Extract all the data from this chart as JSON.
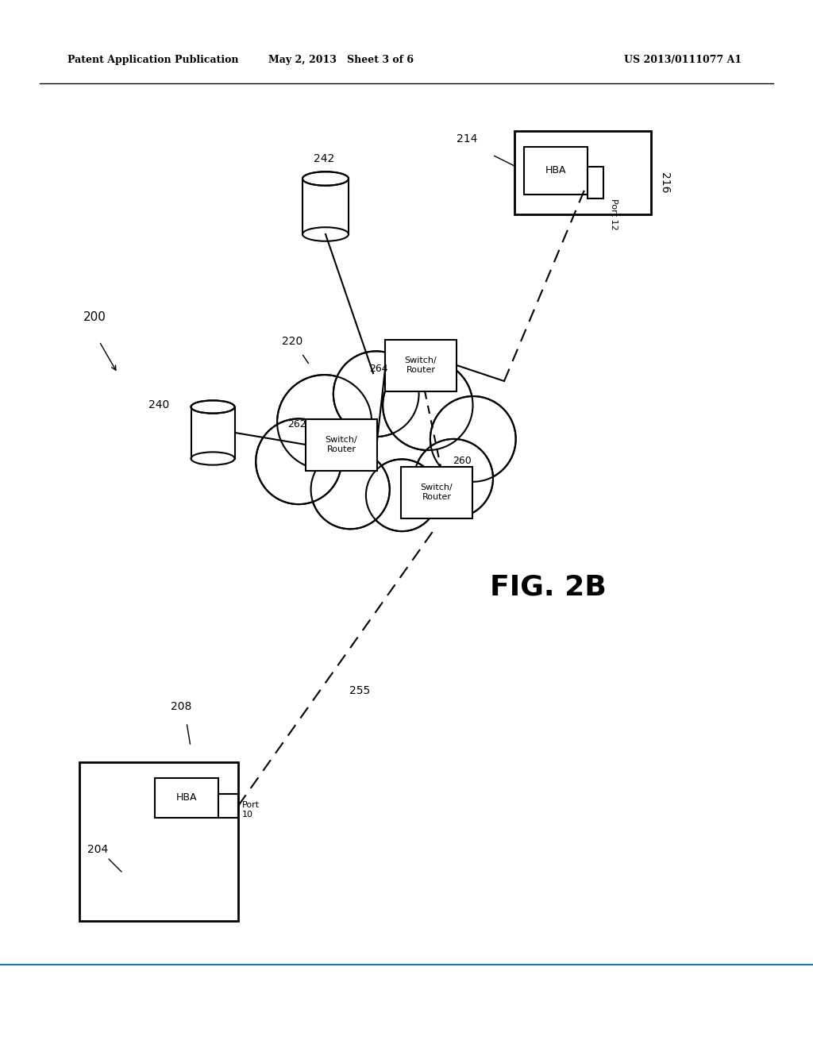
{
  "bg_color": "#ffffff",
  "line_color": "#000000",
  "header_left": "Patent Application Publication",
  "header_mid": "May 2, 2013   Sheet 3 of 6",
  "header_right": "US 2013/0111077 A1",
  "fig_label": "FIG. 2B",
  "ref_200": "200",
  "ref_204": "204",
  "ref_208": "208",
  "ref_214": "214",
  "ref_216": "216",
  "ref_220": "220",
  "ref_240": "240",
  "ref_242": "242",
  "ref_255": "255",
  "ref_260": "260",
  "ref_262": "262",
  "ref_264": "264",
  "port10_label": "Port\n10",
  "port12_label": "Port 12",
  "hba_label": "HBA",
  "sw_router1_label": "Switch/\nRouter",
  "sw_router2_label": "Switch/\nRouter",
  "sw_router3_label": "Switch/\nRouter"
}
